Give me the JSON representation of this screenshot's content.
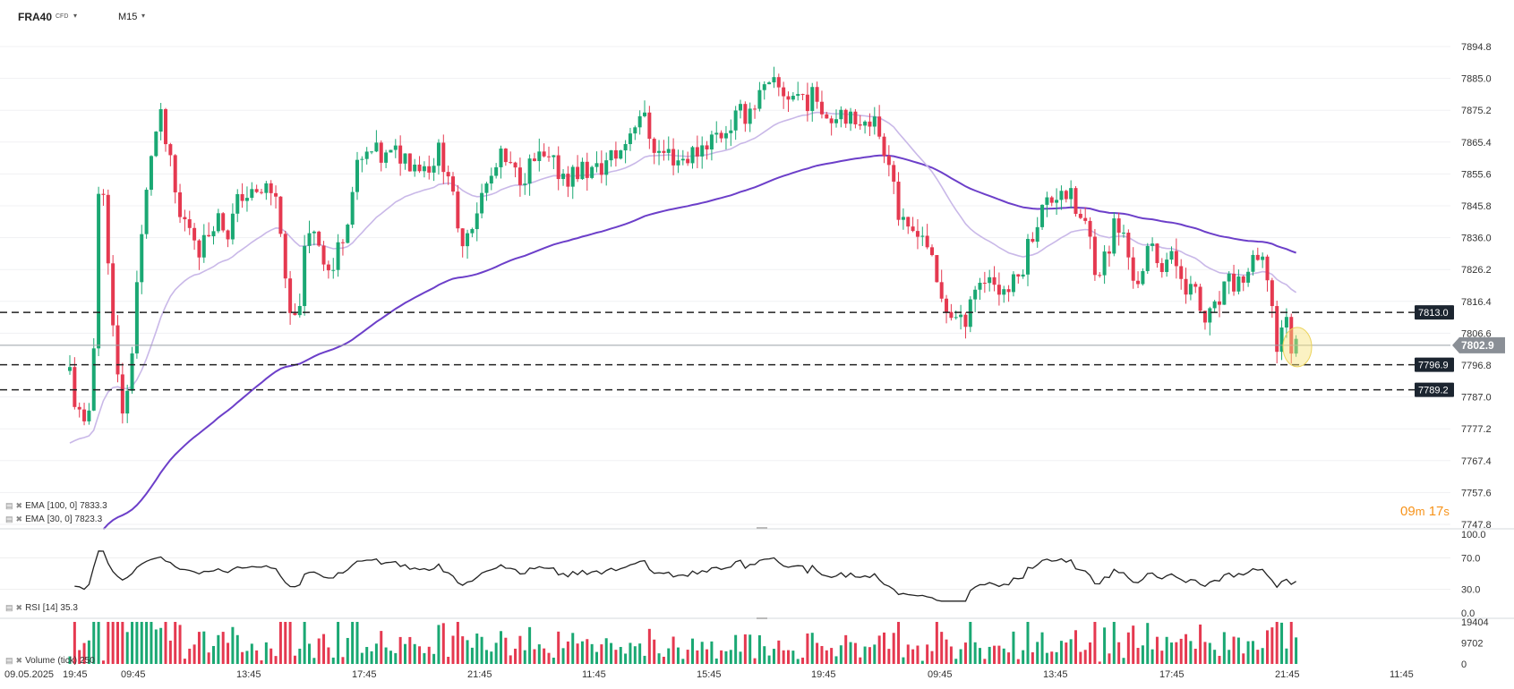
{
  "header": {
    "symbol": "FRA40",
    "symbol_type": "CFD",
    "timeframe": "M15"
  },
  "price_axis": {
    "ticks": [
      "7894.8",
      "7885.0",
      "7875.2",
      "7865.4",
      "7855.6",
      "7845.8",
      "7836.0",
      "7826.2",
      "7816.4",
      "7806.6",
      "7796.8",
      "7787.0",
      "7777.2",
      "7767.4",
      "7757.6",
      "7747.8"
    ],
    "range": [
      7747.8,
      7894.8
    ]
  },
  "levels": [
    {
      "label": "7813.0",
      "value": 7813.0
    },
    {
      "label": "7796.9",
      "value": 7796.9
    },
    {
      "label": "7789.2",
      "value": 7789.2
    }
  ],
  "current_price": {
    "label": "7802.9",
    "value": 7802.9
  },
  "time_axis": [
    "09.05.2025",
    "19:45",
    "09:45",
    "13:45",
    "17:45",
    "21:45",
    "11:45",
    "15:45",
    "19:45",
    "09:45",
    "13:45",
    "17:45",
    "21:45",
    "11:45"
  ],
  "countdown": {
    "minutes": "09",
    "minutes_unit": "m",
    "seconds": "17",
    "seconds_unit": "s"
  },
  "indicators": {
    "ema100": {
      "name": "EMA",
      "params": "[100,  0]",
      "value": "7833.3"
    },
    "ema30": {
      "name": "EMA",
      "params": "[30,  0]",
      "value": "7823.3"
    },
    "rsi": {
      "name": "RSI",
      "params": "[14]",
      "value": "35.3",
      "axis": [
        "100.0",
        "70.0",
        "30.0",
        "0.0"
      ]
    },
    "volume": {
      "name": "Volume",
      "params": "(tick)",
      "value": "250",
      "axis": [
        "19404",
        "9702",
        "0"
      ]
    }
  },
  "colors": {
    "bull": "#1aa873",
    "bear": "#e53950",
    "ema100": "#6c3fc9",
    "ema30": "#c9b8e8",
    "level_line": "#222222",
    "current_price_tag": "#8a8f96",
    "level_tag": "#1c2530",
    "highlight": "#f7e27a",
    "countdown": "#f7931a"
  }
}
